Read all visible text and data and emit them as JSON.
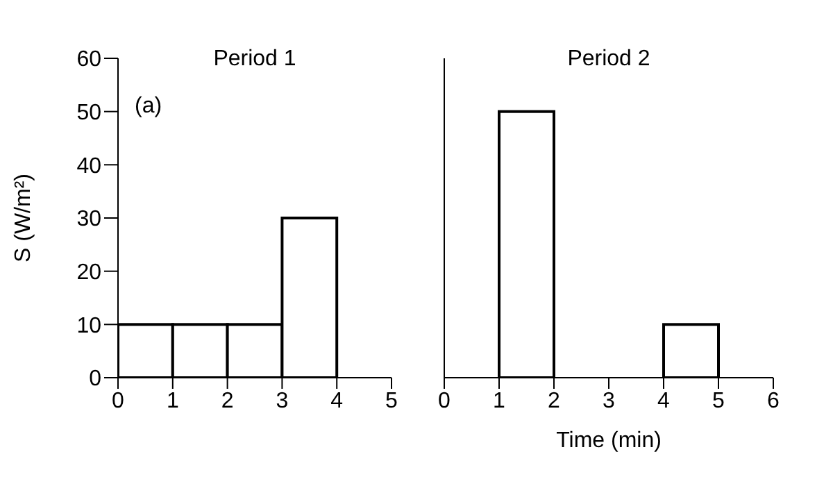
{
  "chart_data": [
    {
      "type": "histogram",
      "title": "Period 1",
      "ylabel": "S (W/m²)",
      "annotations": [
        "(a)"
      ],
      "bins": [
        0,
        1,
        2,
        3,
        4,
        5
      ],
      "values": [
        10,
        10,
        10,
        30,
        0
      ],
      "color": "#ffffff",
      "xlim": [
        0,
        5
      ],
      "xticks": [
        0,
        1,
        2,
        3,
        4,
        5
      ],
      "ylim": [
        0,
        60
      ],
      "yticks": [
        0,
        10,
        20,
        30,
        40,
        50,
        60
      ],
      "grid": false
    },
    {
      "type": "histogram",
      "title": "Period 2",
      "xlabel": "Time (min)",
      "bins": [
        0,
        1,
        2,
        3,
        4,
        5,
        6
      ],
      "values": [
        0,
        50,
        0,
        0,
        10,
        0
      ],
      "color": "#ffffff",
      "xlim": [
        0,
        6
      ],
      "xticks": [
        0,
        1,
        2,
        3,
        4,
        5,
        6
      ],
      "ylim": [
        0,
        60
      ],
      "yticks": [
        0,
        10,
        20,
        30,
        40,
        50,
        60
      ],
      "tick_labels": "x",
      "grid": false
    }
  ]
}
